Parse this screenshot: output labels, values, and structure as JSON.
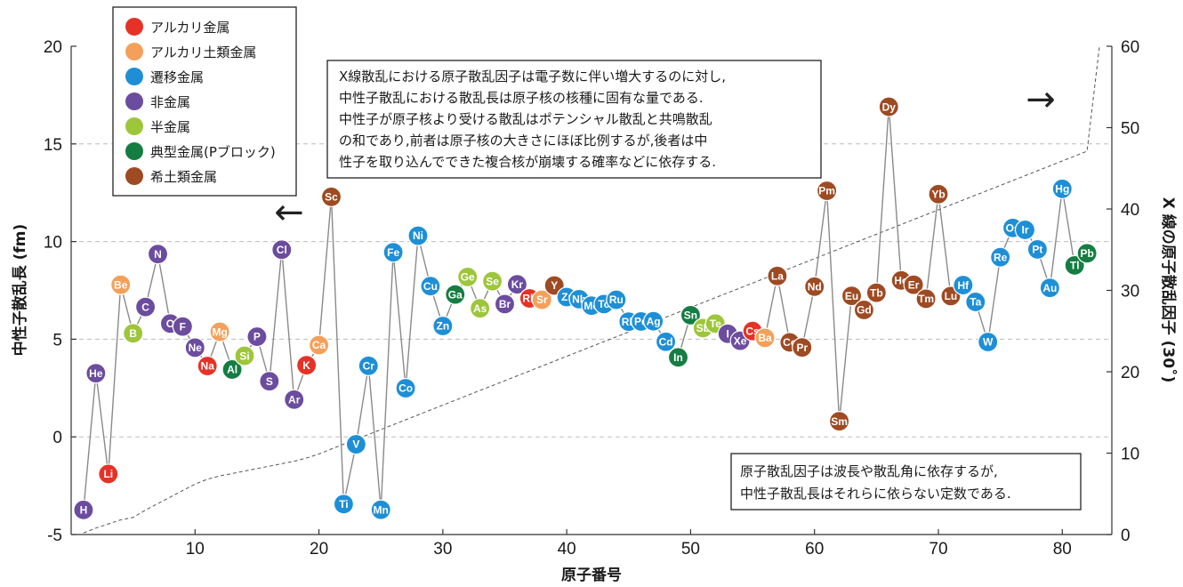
{
  "chart_data": {
    "type": "scatter",
    "xlabel": "原子番号",
    "ylabel_left": "中性子散乱長 (fm)",
    "ylabel_right": "X 線の原子散乱因子 (30˚)",
    "xlim": [
      0,
      84
    ],
    "ylim_left": [
      -5,
      20
    ],
    "ylim_right": [
      0,
      60
    ],
    "x_ticks": [
      10,
      20,
      30,
      40,
      50,
      60,
      70,
      80
    ],
    "y_left_ticks": [
      -5,
      0,
      5,
      10,
      15,
      20
    ],
    "y_right_ticks": [
      0,
      10,
      20,
      30,
      40,
      50,
      60
    ],
    "grid": "horizontal dashed",
    "legend_position": "top-left",
    "categories": [
      {
        "key": "alkali",
        "name": "アルカリ金属",
        "color": "#e53227"
      },
      {
        "key": "alkaline",
        "name": "アルカリ土類金属",
        "color": "#f4a05a"
      },
      {
        "key": "transition",
        "name": "遷移金属",
        "color": "#1e8fd6"
      },
      {
        "key": "nonmetal",
        "name": "非金属",
        "color": "#6b4c9e"
      },
      {
        "key": "metalloid",
        "name": "半金属",
        "color": "#9dc63b"
      },
      {
        "key": "post",
        "name": "典型金属(Pブロック)",
        "color": "#157d42"
      },
      {
        "key": "rare",
        "name": "希土類金属",
        "color": "#9e4a22"
      }
    ],
    "neutron_series": [
      {
        "z": 1,
        "s": "H",
        "b": -3.74,
        "c": "nonmetal"
      },
      {
        "z": 2,
        "s": "He",
        "b": 3.26,
        "c": "nonmetal"
      },
      {
        "z": 3,
        "s": "Li",
        "b": -1.9,
        "c": "alkali"
      },
      {
        "z": 4,
        "s": "Be",
        "b": 7.79,
        "c": "alkaline"
      },
      {
        "z": 5,
        "s": "B",
        "b": 5.3,
        "c": "metalloid"
      },
      {
        "z": 6,
        "s": "C",
        "b": 6.65,
        "c": "nonmetal"
      },
      {
        "z": 7,
        "s": "N",
        "b": 9.36,
        "c": "nonmetal"
      },
      {
        "z": 8,
        "s": "O",
        "b": 5.8,
        "c": "nonmetal"
      },
      {
        "z": 9,
        "s": "F",
        "b": 5.65,
        "c": "nonmetal"
      },
      {
        "z": 10,
        "s": "Ne",
        "b": 4.57,
        "c": "nonmetal"
      },
      {
        "z": 11,
        "s": "Na",
        "b": 3.63,
        "c": "alkali"
      },
      {
        "z": 12,
        "s": "Mg",
        "b": 5.38,
        "c": "alkaline"
      },
      {
        "z": 13,
        "s": "Al",
        "b": 3.45,
        "c": "post"
      },
      {
        "z": 14,
        "s": "Si",
        "b": 4.15,
        "c": "metalloid"
      },
      {
        "z": 15,
        "s": "P",
        "b": 5.13,
        "c": "nonmetal"
      },
      {
        "z": 16,
        "s": "S",
        "b": 2.85,
        "c": "nonmetal"
      },
      {
        "z": 17,
        "s": "Cl",
        "b": 9.58,
        "c": "nonmetal"
      },
      {
        "z": 18,
        "s": "Ar",
        "b": 1.91,
        "c": "nonmetal"
      },
      {
        "z": 19,
        "s": "K",
        "b": 3.67,
        "c": "alkali"
      },
      {
        "z": 20,
        "s": "Ca",
        "b": 4.7,
        "c": "alkaline"
      },
      {
        "z": 21,
        "s": "Sc",
        "b": 12.29,
        "c": "rare"
      },
      {
        "z": 22,
        "s": "Ti",
        "b": -3.44,
        "c": "transition"
      },
      {
        "z": 23,
        "s": "V",
        "b": -0.38,
        "c": "transition"
      },
      {
        "z": 24,
        "s": "Cr",
        "b": 3.64,
        "c": "transition"
      },
      {
        "z": 25,
        "s": "Mn",
        "b": -3.73,
        "c": "transition"
      },
      {
        "z": 26,
        "s": "Fe",
        "b": 9.45,
        "c": "transition"
      },
      {
        "z": 27,
        "s": "Co",
        "b": 2.49,
        "c": "transition"
      },
      {
        "z": 28,
        "s": "Ni",
        "b": 10.3,
        "c": "transition"
      },
      {
        "z": 29,
        "s": "Cu",
        "b": 7.72,
        "c": "transition"
      },
      {
        "z": 30,
        "s": "Zn",
        "b": 5.68,
        "c": "transition"
      },
      {
        "z": 31,
        "s": "Ga",
        "b": 7.29,
        "c": "post"
      },
      {
        "z": 32,
        "s": "Ge",
        "b": 8.19,
        "c": "metalloid"
      },
      {
        "z": 33,
        "s": "As",
        "b": 6.58,
        "c": "metalloid"
      },
      {
        "z": 34,
        "s": "Se",
        "b": 7.97,
        "c": "metalloid"
      },
      {
        "z": 35,
        "s": "Br",
        "b": 6.8,
        "c": "nonmetal"
      },
      {
        "z": 36,
        "s": "Kr",
        "b": 7.81,
        "c": "nonmetal"
      },
      {
        "z": 37,
        "s": "Rb",
        "b": 7.09,
        "c": "alkali"
      },
      {
        "z": 38,
        "s": "Sr",
        "b": 7.02,
        "c": "alkaline"
      },
      {
        "z": 39,
        "s": "Y",
        "b": 7.75,
        "c": "rare"
      },
      {
        "z": 40,
        "s": "Zr",
        "b": 7.16,
        "c": "transition"
      },
      {
        "z": 41,
        "s": "Nb",
        "b": 7.05,
        "c": "transition"
      },
      {
        "z": 42,
        "s": "Mo",
        "b": 6.72,
        "c": "transition"
      },
      {
        "z": 43,
        "s": "Tc",
        "b": 6.8,
        "c": "transition"
      },
      {
        "z": 44,
        "s": "Ru",
        "b": 7.02,
        "c": "transition"
      },
      {
        "z": 45,
        "s": "Rh",
        "b": 5.9,
        "c": "transition"
      },
      {
        "z": 46,
        "s": "Pd",
        "b": 5.91,
        "c": "transition"
      },
      {
        "z": 47,
        "s": "Ag",
        "b": 5.92,
        "c": "transition"
      },
      {
        "z": 48,
        "s": "Cd",
        "b": 4.87,
        "c": "transition"
      },
      {
        "z": 49,
        "s": "In",
        "b": 4.07,
        "c": "post"
      },
      {
        "z": 50,
        "s": "Sn",
        "b": 6.23,
        "c": "post"
      },
      {
        "z": 51,
        "s": "Sb",
        "b": 5.57,
        "c": "metalloid"
      },
      {
        "z": 52,
        "s": "Te",
        "b": 5.8,
        "c": "metalloid"
      },
      {
        "z": 53,
        "s": "I",
        "b": 5.28,
        "c": "nonmetal"
      },
      {
        "z": 54,
        "s": "Xe",
        "b": 4.92,
        "c": "nonmetal"
      },
      {
        "z": 55,
        "s": "Cs",
        "b": 5.42,
        "c": "alkali"
      },
      {
        "z": 56,
        "s": "Ba",
        "b": 5.07,
        "c": "alkaline"
      },
      {
        "z": 57,
        "s": "La",
        "b": 8.24,
        "c": "rare"
      },
      {
        "z": 58,
        "s": "Ce",
        "b": 4.84,
        "c": "rare"
      },
      {
        "z": 59,
        "s": "Pr",
        "b": 4.58,
        "c": "rare"
      },
      {
        "z": 60,
        "s": "Nd",
        "b": 7.69,
        "c": "rare"
      },
      {
        "z": 61,
        "s": "Pm",
        "b": 12.6,
        "c": "rare"
      },
      {
        "z": 62,
        "s": "Sm",
        "b": 0.8,
        "c": "rare"
      },
      {
        "z": 63,
        "s": "Eu",
        "b": 7.22,
        "c": "rare"
      },
      {
        "z": 64,
        "s": "Gd",
        "b": 6.5,
        "c": "rare"
      },
      {
        "z": 65,
        "s": "Tb",
        "b": 7.38,
        "c": "rare"
      },
      {
        "z": 66,
        "s": "Dy",
        "b": 16.9,
        "c": "rare"
      },
      {
        "z": 67,
        "s": "Ho",
        "b": 8.01,
        "c": "rare"
      },
      {
        "z": 68,
        "s": "Er",
        "b": 7.79,
        "c": "rare"
      },
      {
        "z": 69,
        "s": "Tm",
        "b": 7.07,
        "c": "rare"
      },
      {
        "z": 70,
        "s": "Yb",
        "b": 12.43,
        "c": "rare"
      },
      {
        "z": 71,
        "s": "Lu",
        "b": 7.21,
        "c": "rare"
      },
      {
        "z": 72,
        "s": "Hf",
        "b": 7.77,
        "c": "transition"
      },
      {
        "z": 73,
        "s": "Ta",
        "b": 6.91,
        "c": "transition"
      },
      {
        "z": 74,
        "s": "W",
        "b": 4.86,
        "c": "transition"
      },
      {
        "z": 75,
        "s": "Re",
        "b": 9.2,
        "c": "transition"
      },
      {
        "z": 76,
        "s": "Os",
        "b": 10.7,
        "c": "transition"
      },
      {
        "z": 77,
        "s": "Ir",
        "b": 10.6,
        "c": "transition"
      },
      {
        "z": 78,
        "s": "Pt",
        "b": 9.6,
        "c": "transition"
      },
      {
        "z": 79,
        "s": "Au",
        "b": 7.63,
        "c": "transition"
      },
      {
        "z": 80,
        "s": "Hg",
        "b": 12.7,
        "c": "transition"
      },
      {
        "z": 81,
        "s": "Tl",
        "b": 8.78,
        "c": "post"
      },
      {
        "z": 82,
        "s": "Pb",
        "b": 9.4,
        "c": "post"
      }
    ],
    "xray_series": {
      "name": "X 線の原子散乱因子",
      "x": [
        1,
        2,
        3,
        4,
        5,
        6,
        7,
        8,
        9,
        10,
        11,
        12,
        13,
        14,
        15,
        16,
        17,
        18,
        19,
        20,
        21,
        22,
        23,
        24,
        25,
        26,
        27,
        28,
        29,
        30,
        31,
        32,
        33,
        34,
        35,
        36,
        37,
        38,
        39,
        40,
        41,
        42,
        43,
        44,
        45,
        46,
        47,
        48,
        49,
        50,
        51,
        52,
        53,
        54,
        55,
        56,
        57,
        58,
        59,
        60,
        61,
        62,
        63,
        64,
        65,
        66,
        67,
        68,
        69,
        70,
        71,
        72,
        73,
        74,
        75,
        76,
        77,
        78,
        79,
        80,
        81,
        82,
        83
      ],
      "values": [
        0.2,
        0.8,
        1.3,
        1.8,
        2.1,
        3.0,
        3.8,
        4.6,
        5.4,
        6.2,
        6.8,
        7.2,
        7.5,
        7.8,
        8.1,
        8.4,
        8.7,
        9.0,
        9.4,
        9.9,
        10.5,
        11.1,
        11.7,
        12.3,
        12.9,
        13.5,
        14.1,
        14.7,
        15.3,
        15.9,
        16.5,
        17.1,
        17.7,
        18.3,
        18.9,
        19.5,
        20.1,
        20.7,
        21.3,
        21.9,
        22.5,
        23.1,
        23.7,
        24.3,
        24.9,
        25.5,
        26.1,
        26.7,
        27.3,
        27.9,
        28.5,
        29.1,
        29.7,
        30.3,
        30.9,
        31.5,
        32.1,
        32.7,
        33.3,
        33.9,
        34.5,
        35.1,
        35.7,
        36.3,
        36.9,
        37.5,
        38.1,
        38.7,
        39.3,
        39.9,
        40.5,
        41.1,
        41.7,
        42.3,
        42.9,
        43.5,
        44.1,
        44.7,
        45.3,
        45.9,
        46.5,
        47.1,
        60.0
      ]
    },
    "annotations": {
      "left_arrow": "←",
      "right_arrow": "→"
    }
  },
  "notes": {
    "top_lines": [
      "X線散乱における原子散乱因子は電子数に伴い増大するのに対し,",
      "中性子散乱における散乱長は原子核の核種に固有な量である.",
      "中性子が原子核より受ける散乱はポテンシャル散乱と共鳴散乱",
      "の和であり,前者は原子核の大きさにほぼ比例するが,後者は中",
      "性子を取り込んでできた複合核が崩壊する確率などに依存する."
    ],
    "bottom_lines": [
      "原子散乱因子は波長や散乱角に依存するが,",
      "中性子散乱長はそれらに依らない定数である."
    ]
  }
}
